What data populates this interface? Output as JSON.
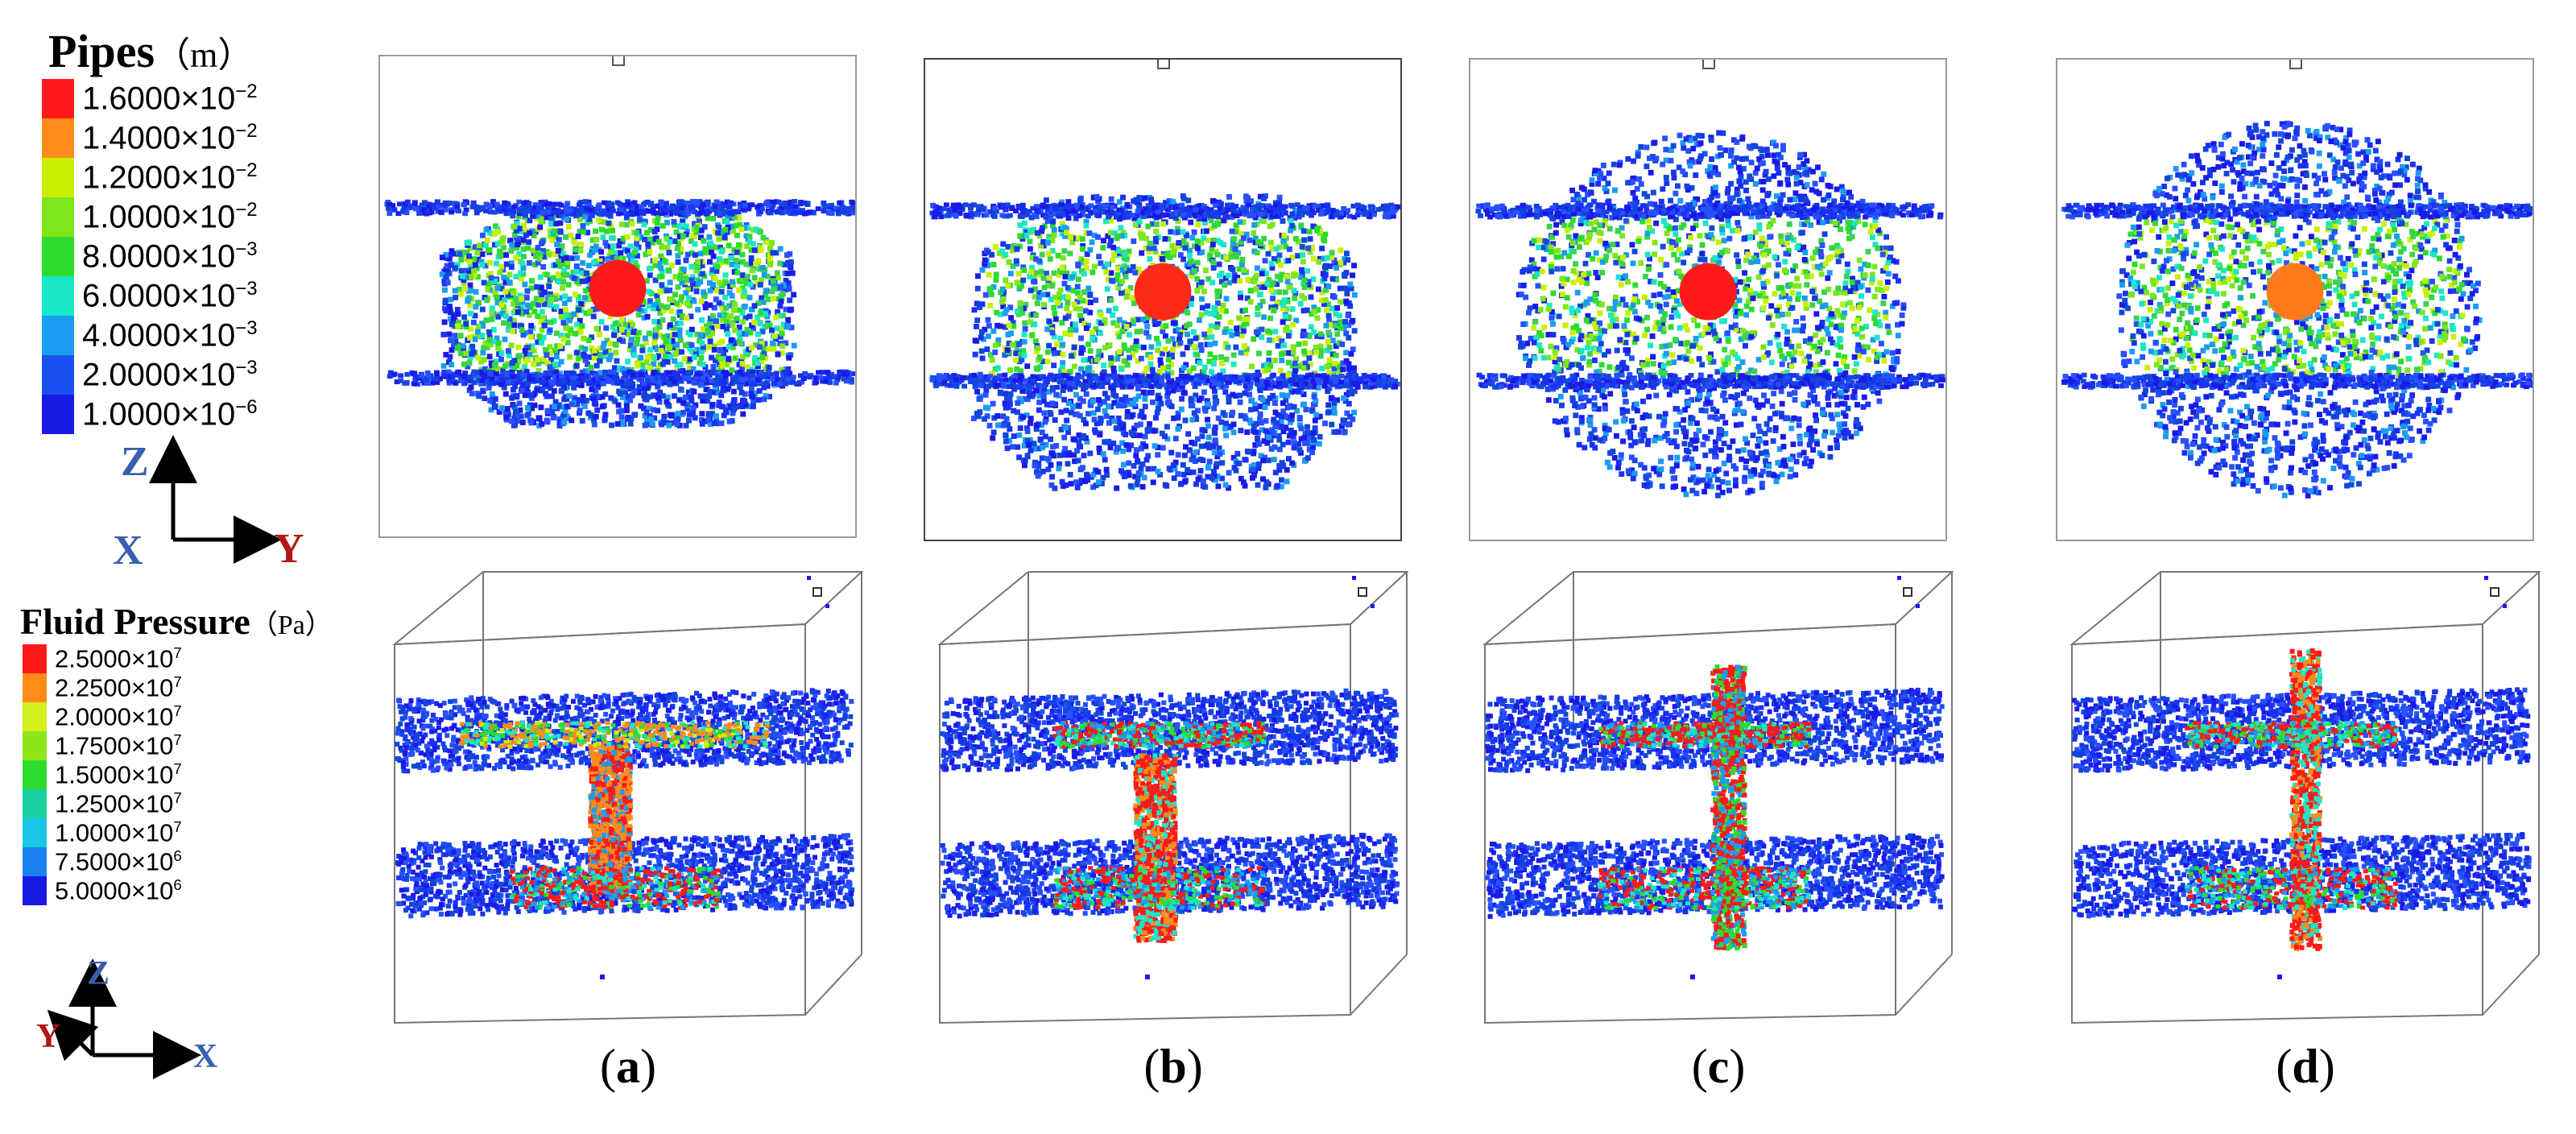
{
  "pipes_legend": {
    "title": "Pipes",
    "unit": "（m）",
    "entries": [
      {
        "mantissa": "1.6000×10",
        "exp": "−2",
        "color": "#ff1a1a"
      },
      {
        "mantissa": "1.4000×10",
        "exp": "−2",
        "color": "#ff8c1a"
      },
      {
        "mantissa": "1.2000×10",
        "exp": "−2",
        "color": "#c8f000"
      },
      {
        "mantissa": "1.0000×10",
        "exp": "−2",
        "color": "#7ee61a"
      },
      {
        "mantissa": "8.0000×10",
        "exp": "−3",
        "color": "#2ddc2d"
      },
      {
        "mantissa": "6.0000×10",
        "exp": "−3",
        "color": "#1ae6c8"
      },
      {
        "mantissa": "4.0000×10",
        "exp": "−3",
        "color": "#1a9cf0"
      },
      {
        "mantissa": "2.0000×10",
        "exp": "−3",
        "color": "#1a50f0"
      },
      {
        "mantissa": "1.0000×10",
        "exp": "−6",
        "color": "#1a1ae6"
      }
    ]
  },
  "pressure_legend": {
    "title": "Fluid Pressure",
    "unit": "（Pa）",
    "entries": [
      {
        "mantissa": "2.5000×10",
        "exp": "7",
        "color": "#ff1a1a"
      },
      {
        "mantissa": "2.2500×10",
        "exp": "7",
        "color": "#ff8c1a"
      },
      {
        "mantissa": "2.0000×10",
        "exp": "7",
        "color": "#d2f01a"
      },
      {
        "mantissa": "1.7500×10",
        "exp": "7",
        "color": "#8ce61a"
      },
      {
        "mantissa": "1.5000×10",
        "exp": "7",
        "color": "#2ddc2d"
      },
      {
        "mantissa": "1.2500×10",
        "exp": "7",
        "color": "#1ad2a0"
      },
      {
        "mantissa": "1.0000×10",
        "exp": "7",
        "color": "#1ac8e6"
      },
      {
        "mantissa": "7.5000×10",
        "exp": "6",
        "color": "#1a82f0"
      },
      {
        "mantissa": "5.0000×10",
        "exp": "6",
        "color": "#1a1ae6"
      }
    ]
  },
  "axes_top": {
    "z": "Z",
    "x": "X",
    "y": "Y"
  },
  "axes_bottom": {
    "z": "Z",
    "y": "Y",
    "x": "X"
  },
  "colors": {
    "axis_blue": "#3a5fb0",
    "axis_red": "#b01818",
    "particle_blue": "#1a1ae6"
  },
  "panels": [
    {
      "caption_open": "(",
      "caption_letter": "a",
      "caption_close": ")",
      "top_variant": "a",
      "bottom_variant": "a"
    },
    {
      "caption_open": "(",
      "caption_letter": "b",
      "caption_close": ")",
      "top_variant": "b",
      "bottom_variant": "b"
    },
    {
      "caption_open": "(",
      "caption_letter": "c",
      "caption_close": ")",
      "top_variant": "c",
      "bottom_variant": "c"
    },
    {
      "caption_open": "(",
      "caption_letter": "d",
      "caption_close": ")",
      "top_variant": "d",
      "bottom_variant": "d"
    }
  ]
}
